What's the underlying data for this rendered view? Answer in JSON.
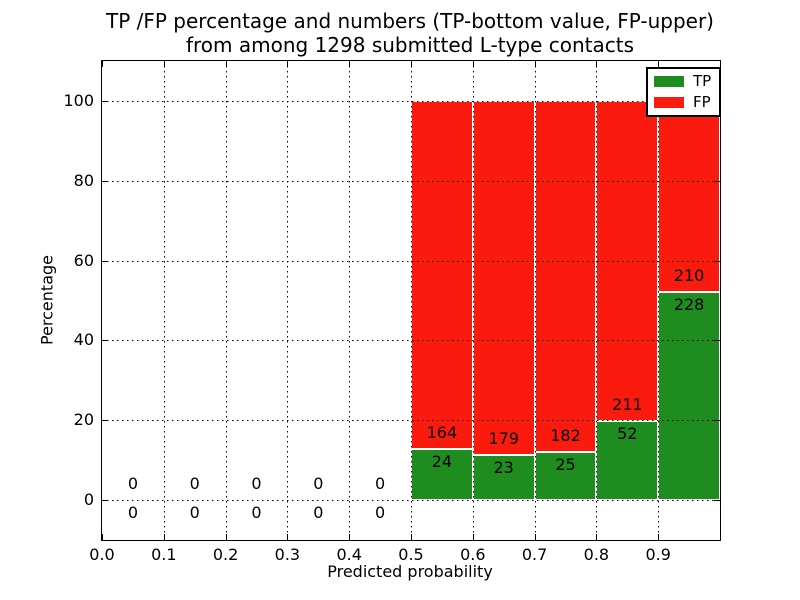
{
  "chart_data": {
    "type": "bar",
    "stacked": true,
    "normalized": "each non-empty bin sums to 100%",
    "title_line1": "TP /FP percentage and numbers (TP-bottom value, FP-upper)",
    "title_line2": "from among 1298 submitted L-type contacts",
    "xlabel": "Predicted probability",
    "ylabel": "Percentage",
    "xlim": [
      0.0,
      1.0
    ],
    "ylim": [
      -10,
      110
    ],
    "xticks": [
      0.0,
      0.1,
      0.2,
      0.3,
      0.4,
      0.5,
      0.6,
      0.7,
      0.8,
      0.9
    ],
    "xtick_labels": [
      "0.0",
      "0.1",
      "0.2",
      "0.3",
      "0.4",
      "0.5",
      "0.6",
      "0.7",
      "0.8",
      "0.9"
    ],
    "yticks": [
      0,
      20,
      40,
      60,
      80,
      100
    ],
    "ytick_labels": [
      "0",
      "20",
      "40",
      "60",
      "80",
      "100"
    ],
    "grid": "dotted",
    "bin_edges": [
      0.0,
      0.1,
      0.2,
      0.3,
      0.4,
      0.5,
      0.6,
      0.7,
      0.8,
      0.9,
      1.0
    ],
    "series": [
      {
        "name": "TP",
        "color": "#1e8c1e",
        "counts": [
          0,
          0,
          0,
          0,
          0,
          24,
          23,
          25,
          52,
          228
        ]
      },
      {
        "name": "FP",
        "color": "#fa1a0e",
        "counts": [
          0,
          0,
          0,
          0,
          0,
          164,
          179,
          182,
          211,
          210
        ]
      }
    ],
    "legend": {
      "position": "upper right",
      "items": [
        "TP",
        "FP"
      ]
    },
    "label_rule": "FP count printed above the TP/FP boundary, TP count printed below it"
  }
}
